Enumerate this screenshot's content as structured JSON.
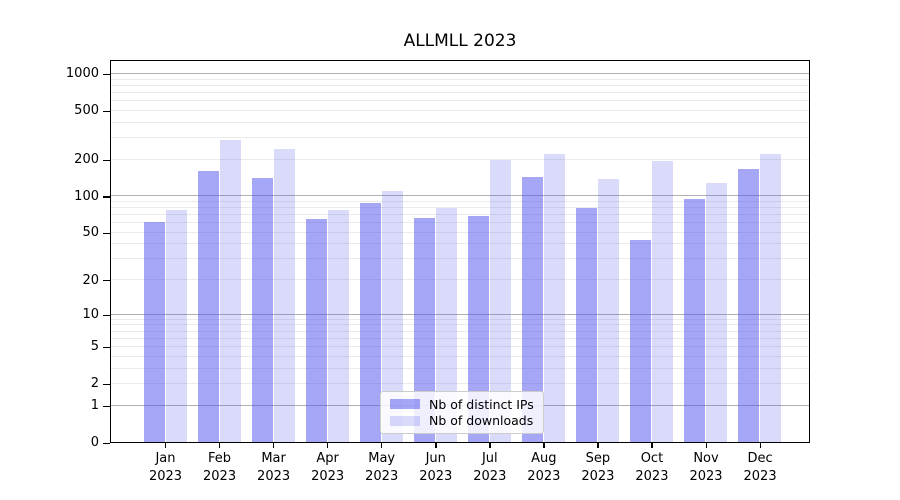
{
  "title": "ALLMLL 2023",
  "chart_data": {
    "type": "bar",
    "title": "ALLMLL 2023",
    "categories": [
      "Jan",
      "Feb",
      "Mar",
      "Apr",
      "May",
      "Jun",
      "Jul",
      "Aug",
      "Sep",
      "Oct",
      "Nov",
      "Dec"
    ],
    "year_label": "2023",
    "series": [
      {
        "name": "Nb of distinct IPs",
        "color": "#5555ee",
        "alpha": 0.52,
        "values": [
          61,
          160,
          140,
          64,
          88,
          66,
          68,
          143,
          79,
          43,
          94,
          166
        ]
      },
      {
        "name": "Nb of downloads",
        "color": "#5555ee",
        "alpha": 0.22,
        "values": [
          76,
          286,
          241,
          76,
          109,
          79,
          196,
          220,
          137,
          193,
          127,
          220
        ]
      }
    ],
    "yscale": "log1p",
    "ylim": [
      0,
      1300
    ],
    "yticks": [
      0,
      1,
      2,
      5,
      10,
      20,
      50,
      100,
      200,
      500,
      1000
    ],
    "grid": {
      "major_lines": [
        1,
        10,
        100,
        1000
      ],
      "minor_multiples": [
        2,
        3,
        4,
        5,
        6,
        7,
        8,
        9
      ],
      "minor_decades": [
        0,
        1,
        2
      ]
    },
    "legend": {
      "position": "lower-center"
    }
  },
  "colors": {
    "bar_fill": "#5555ee",
    "bar_dark_rendered": "#a7a7f6",
    "bar_light_rendered": "#dadaf9",
    "grid_major": "#b0b0b0",
    "grid_minor": "#ebebeb",
    "axis": "#000000"
  }
}
